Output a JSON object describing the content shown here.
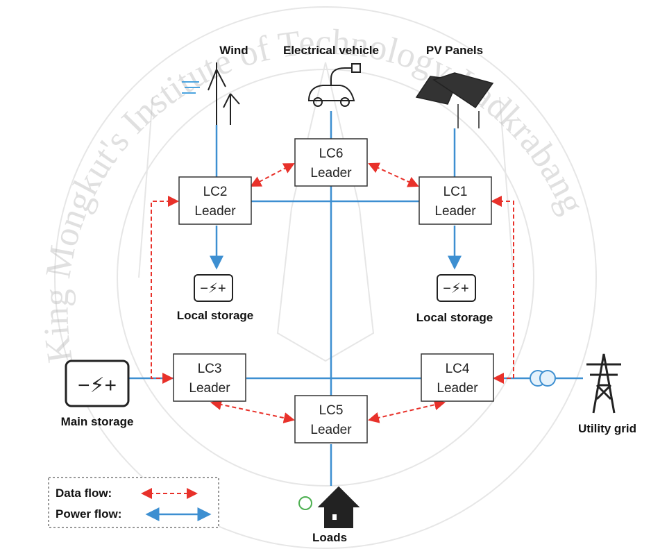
{
  "labels": {
    "wind": "Wind",
    "ev": "Electrical vehicle",
    "pv": "PV Panels",
    "local_storage_left": "Local storage",
    "local_storage_right": "Local storage",
    "main_storage": "Main storage",
    "utility_grid": "Utility grid",
    "loads": "Loads"
  },
  "nodes": [
    {
      "id": "LC6",
      "role": "Leader"
    },
    {
      "id": "LC2",
      "role": "Leader"
    },
    {
      "id": "LC1",
      "role": "Leader"
    },
    {
      "id": "LC3",
      "role": "Leader"
    },
    {
      "id": "LC4",
      "role": "Leader"
    },
    {
      "id": "LC5",
      "role": "Leader"
    }
  ],
  "legend": {
    "data_flow": "Data flow:",
    "power_flow": "Power flow:"
  },
  "watermark": "King Mongkut's Institute of Technology Ladkrabang"
}
